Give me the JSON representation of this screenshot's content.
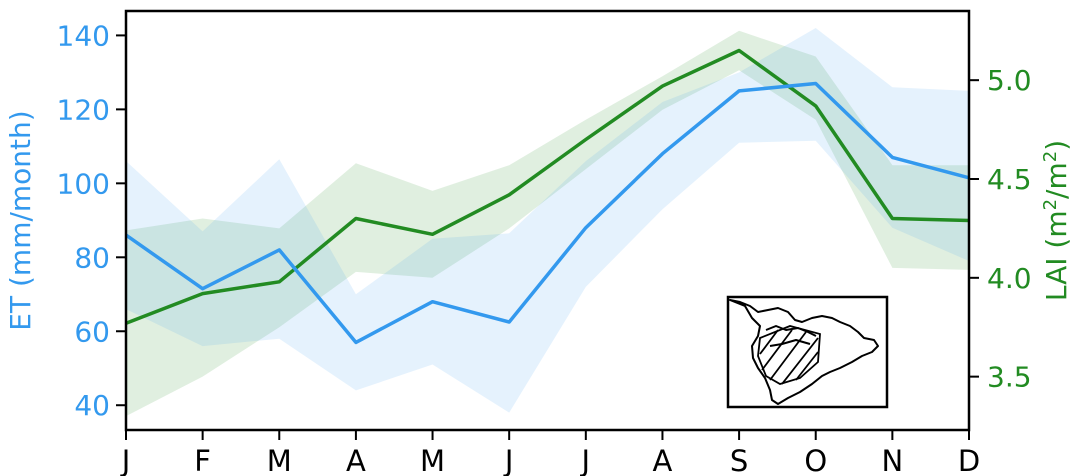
{
  "chart_data": {
    "type": "line",
    "categories": [
      "J",
      "F",
      "M",
      "A",
      "M",
      "J",
      "J",
      "A",
      "S",
      "O",
      "N",
      "D"
    ],
    "y_left": {
      "label": "ET (mm/month)",
      "ticks": [
        40,
        60,
        80,
        100,
        120,
        140
      ],
      "range": [
        33.3,
        146.6
      ],
      "color": "#3399ee"
    },
    "y_right": {
      "label_main": "LAI (m",
      "label_sup1": "2",
      "label_mid": "/m",
      "label_sup2": "2",
      "label_end": ")",
      "ticks": [
        3.5,
        4.0,
        4.5,
        5.0
      ],
      "tick_labels": [
        "3.5",
        "4.0",
        "4.5",
        "5.0"
      ],
      "range": [
        3.23,
        5.35
      ],
      "color": "#228b22"
    },
    "series": [
      {
        "axis": "left",
        "color": "#3399ee",
        "values": [
          86,
          71.5,
          82,
          57,
          68,
          62.5,
          88,
          108,
          125,
          127,
          107,
          101.5
        ],
        "band_upper": [
          106,
          87,
          106.5,
          70,
          85,
          86.5,
          106,
          122,
          130,
          142,
          126,
          125
        ],
        "band_lower": [
          66,
          56,
          58,
          44,
          51,
          38,
          72,
          93,
          111,
          111.5,
          88,
          79
        ]
      },
      {
        "axis": "right",
        "color": "#228b22",
        "values": [
          3.77,
          3.92,
          3.98,
          4.3,
          4.22,
          4.42,
          4.7,
          4.97,
          5.15,
          4.87,
          4.3,
          4.29
        ],
        "band_upper": [
          4.24,
          4.3,
          4.25,
          4.58,
          4.44,
          4.57,
          4.8,
          5.02,
          5.25,
          5.12,
          4.57,
          4.57
        ],
        "band_lower": [
          3.3,
          3.5,
          3.75,
          4.03,
          4.0,
          4.25,
          4.55,
          4.85,
          5.05,
          4.8,
          4.05,
          4.04
        ]
      }
    ],
    "grid": false
  }
}
